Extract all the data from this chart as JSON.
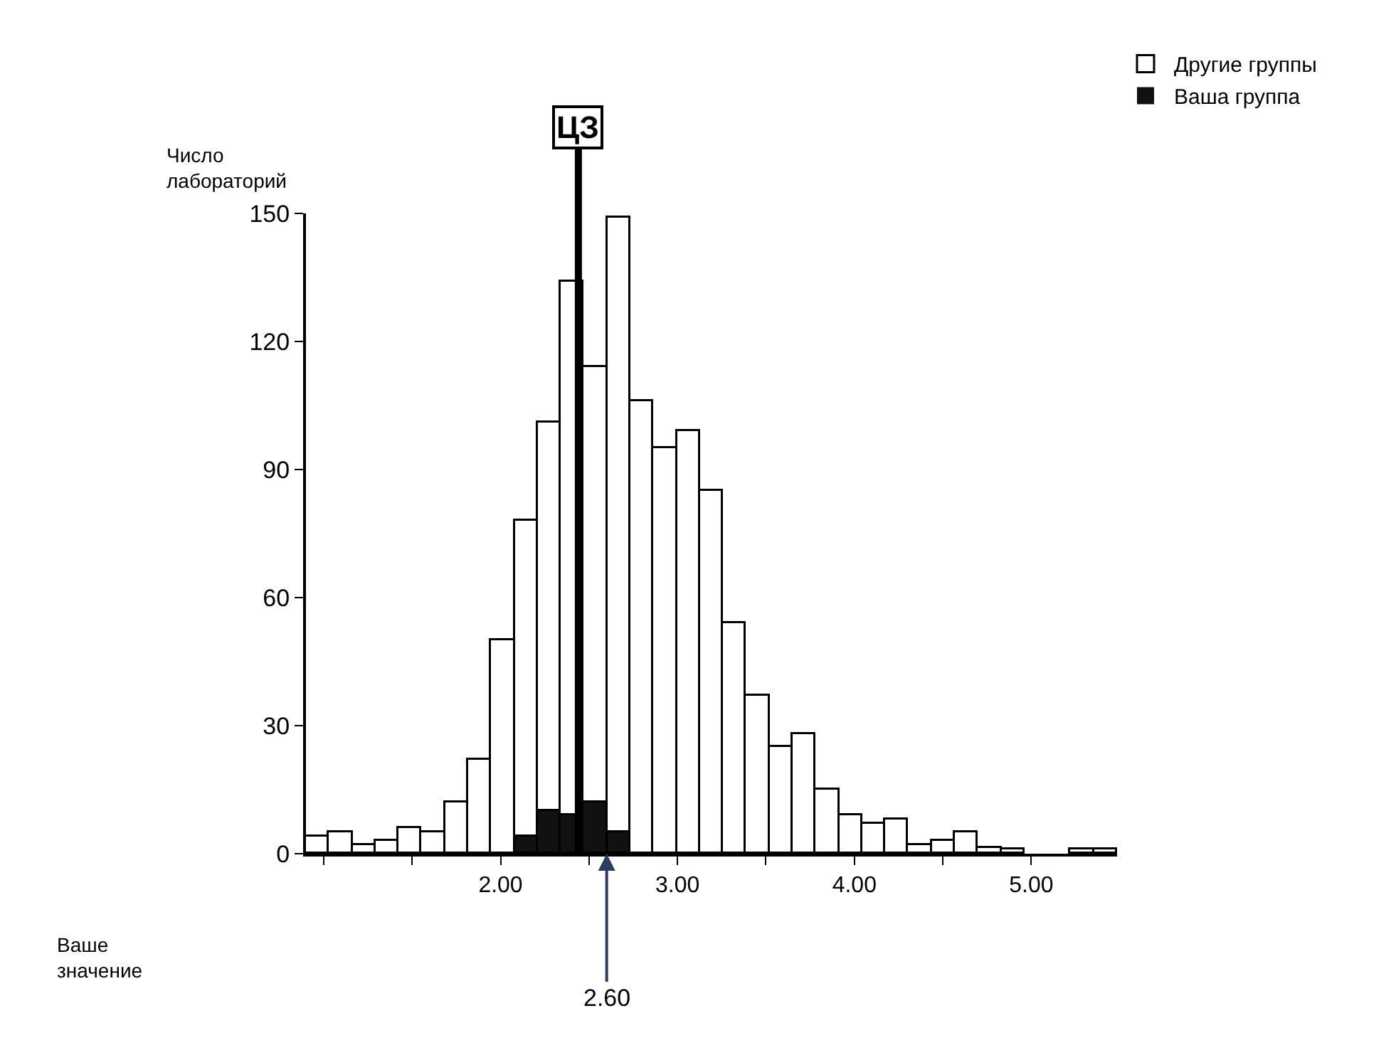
{
  "chart_data": {
    "type": "histogram",
    "ylabel": "Число лабораторий",
    "bins": [
      0.9,
      1.031,
      1.162,
      1.293,
      1.424,
      1.555,
      1.686,
      1.817,
      1.948,
      2.079,
      2.21,
      2.341,
      2.472,
      2.603,
      2.734,
      2.865,
      2.996,
      3.127,
      3.258,
      3.389,
      3.52,
      3.651,
      3.782,
      3.913,
      4.044,
      4.175,
      4.306,
      4.437,
      4.568,
      4.699,
      4.83,
      4.961,
      5.092,
      5.223,
      5.354,
      5.485
    ],
    "series": [
      {
        "name": "Другие группы",
        "color": "#ffffff",
        "values": [
          4,
          5,
          2,
          3,
          6,
          5,
          12,
          22,
          50,
          78,
          101,
          134,
          114,
          149,
          106,
          95,
          99,
          85,
          54,
          37,
          25,
          28,
          15,
          9,
          7,
          8,
          2,
          3,
          5,
          1.5,
          1,
          0,
          0,
          1,
          1
        ]
      },
      {
        "name": "Ваша группа",
        "color": "#111111",
        "values": [
          0,
          0,
          0,
          0,
          0,
          0,
          0,
          0,
          0,
          4,
          10,
          9,
          12,
          5,
          0,
          0,
          0,
          0,
          0,
          0,
          0,
          0,
          0,
          0,
          0,
          0,
          0,
          0,
          0,
          0,
          0,
          0,
          0,
          0,
          0
        ]
      }
    ],
    "xlim": [
      0.9,
      5.485
    ],
    "xticks": [
      {
        "value": 1,
        "label": null
      },
      {
        "value": 1.5,
        "label": null
      },
      {
        "value": 2,
        "label": "2.00"
      },
      {
        "value": 2.5,
        "label": null
      },
      {
        "value": 3,
        "label": "3.00"
      },
      {
        "value": 3.5,
        "label": null
      },
      {
        "value": 4,
        "label": "4.00"
      },
      {
        "value": 4.5,
        "label": null
      },
      {
        "value": 5,
        "label": "5.00"
      }
    ],
    "ylim": [
      0,
      150
    ],
    "yticks": [
      0,
      30,
      60,
      90,
      120,
      150
    ],
    "ref_lines": [
      {
        "axis": "x",
        "value": 2.44,
        "label": "ЦЗ",
        "color": "#000000"
      }
    ],
    "annotations": [
      "Ваше значение",
      {
        "text": "2.60",
        "x": 2.6,
        "y": 0
      }
    ],
    "legend": "top right"
  }
}
